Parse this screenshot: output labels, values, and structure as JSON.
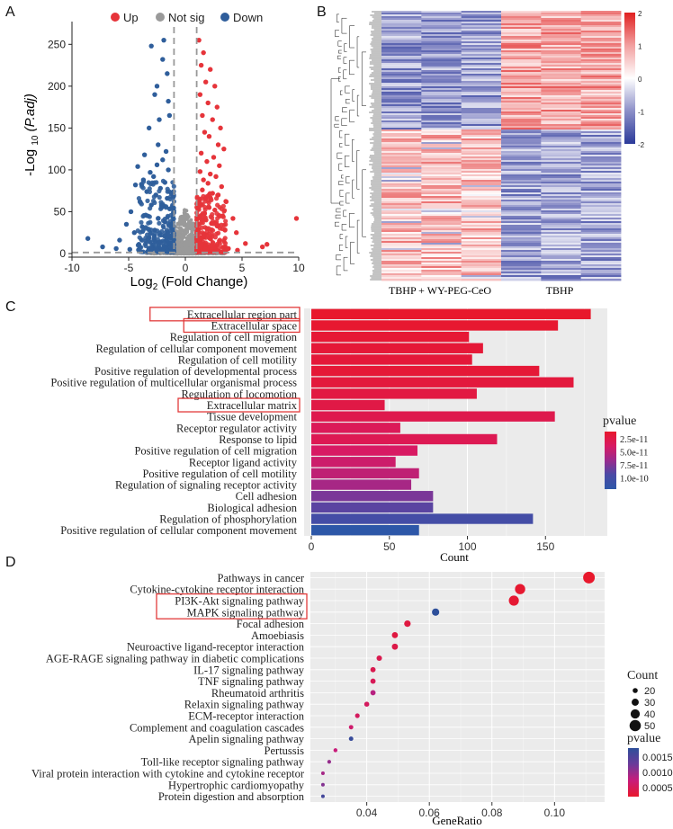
{
  "panels": {
    "a": "A",
    "b": "B",
    "c": "C",
    "d": "D"
  },
  "colors": {
    "up": "#e6343a",
    "notsig": "#9a9a9a",
    "down": "#2f5e9b",
    "heat_low": "#2b3a9a",
    "heat_mid": "#ffffff",
    "heat_high": "#e02020",
    "gridbg": "#ebebeb",
    "box": "#e23b3b"
  },
  "chart_data": [
    {
      "type": "scatter",
      "id": "volcano",
      "legend": [
        "Up",
        "Not sig",
        "Down"
      ],
      "xlabel_main": "Log",
      "xlabel_sub": "2",
      "xlabel_tail": " (Fold Change)",
      "ylabel_main": "-Log ",
      "ylabel_sub": "10",
      "ylabel_tail": " (P.adj)",
      "xlim": [
        -10,
        10
      ],
      "ylim": [
        0,
        260
      ],
      "xticks": [
        -10,
        -5,
        0,
        5,
        10
      ],
      "yticks": [
        0,
        50,
        100,
        150,
        200,
        250
      ],
      "thresholds": {
        "x": [
          -1,
          1
        ],
        "y": 1.3
      },
      "up_points": [
        [
          1.2,
          255
        ],
        [
          1.6,
          240
        ],
        [
          1.4,
          225
        ],
        [
          2.2,
          220
        ],
        [
          1.8,
          205
        ],
        [
          2.6,
          200
        ],
        [
          1.3,
          190
        ],
        [
          2.0,
          180
        ],
        [
          2.8,
          175
        ],
        [
          1.5,
          165
        ],
        [
          2.4,
          160
        ],
        [
          3.1,
          150
        ],
        [
          1.7,
          145
        ],
        [
          2.1,
          140
        ],
        [
          2.9,
          130
        ],
        [
          3.4,
          125
        ],
        [
          1.4,
          120
        ],
        [
          2.5,
          115
        ],
        [
          1.9,
          110
        ],
        [
          3.0,
          105
        ],
        [
          1.3,
          98
        ],
        [
          2.2,
          95
        ],
        [
          2.7,
          92
        ],
        [
          1.6,
          88
        ],
        [
          2.0,
          84
        ],
        [
          3.2,
          80
        ],
        [
          1.5,
          76
        ],
        [
          2.4,
          72
        ],
        [
          2.9,
          70
        ],
        [
          1.8,
          66
        ],
        [
          3.6,
          62
        ],
        [
          1.4,
          58
        ],
        [
          2.1,
          55
        ],
        [
          2.6,
          52
        ],
        [
          1.7,
          48
        ],
        [
          3.3,
          45
        ],
        [
          4.2,
          42
        ],
        [
          1.5,
          40
        ],
        [
          2.3,
          36
        ],
        [
          2.8,
          33
        ],
        [
          1.9,
          30
        ],
        [
          3.5,
          28
        ],
        [
          4.5,
          25
        ],
        [
          1.6,
          22
        ],
        [
          2.2,
          18
        ],
        [
          3.0,
          15
        ],
        [
          5.3,
          12
        ],
        [
          1.4,
          10
        ],
        [
          6.8,
          8
        ],
        [
          7.2,
          11
        ],
        [
          9.8,
          42
        ],
        [
          2.5,
          8
        ],
        [
          3.8,
          6
        ],
        [
          1.8,
          5
        ],
        [
          4.6,
          4
        ],
        [
          2.9,
          3
        ]
      ],
      "down_points": [
        [
          -1.9,
          255
        ],
        [
          -3.0,
          248
        ],
        [
          -2.0,
          232
        ],
        [
          -1.6,
          215
        ],
        [
          -2.5,
          200
        ],
        [
          -2.7,
          190
        ],
        [
          -1.5,
          182
        ],
        [
          -1.4,
          165
        ],
        [
          -2.3,
          160
        ],
        [
          -3.2,
          150
        ],
        [
          -2.4,
          130
        ],
        [
          -1.7,
          122
        ],
        [
          -3.6,
          118
        ],
        [
          -2.0,
          112
        ],
        [
          -2.5,
          106
        ],
        [
          -4.2,
          104
        ],
        [
          -1.5,
          100
        ],
        [
          -3.1,
          97
        ],
        [
          -2.8,
          92
        ],
        [
          -3.7,
          88
        ],
        [
          -1.8,
          85
        ],
        [
          -4.4,
          82
        ],
        [
          -2.2,
          78
        ],
        [
          -3.4,
          74
        ],
        [
          -2.6,
          70
        ],
        [
          -1.6,
          66
        ],
        [
          -4.0,
          62
        ],
        [
          -3.0,
          58
        ],
        [
          -2.1,
          55
        ],
        [
          -4.8,
          50
        ],
        [
          -3.5,
          46
        ],
        [
          -2.4,
          42
        ],
        [
          -1.8,
          38
        ],
        [
          -5.2,
          35
        ],
        [
          -3.8,
          32
        ],
        [
          -2.7,
          28
        ],
        [
          -4.5,
          25
        ],
        [
          -1.5,
          22
        ],
        [
          -3.2,
          19
        ],
        [
          -5.8,
          16
        ],
        [
          -2.2,
          14
        ],
        [
          -4.1,
          11
        ],
        [
          -7.3,
          8
        ],
        [
          -8.6,
          18
        ],
        [
          -1.3,
          8
        ],
        [
          -3.0,
          6
        ],
        [
          -4.9,
          5
        ],
        [
          -2.5,
          4
        ],
        [
          -6.1,
          6
        ]
      ],
      "notsig_points": [
        [
          0.0,
          8
        ],
        [
          0.2,
          12
        ],
        [
          -0.3,
          10
        ],
        [
          0.5,
          6
        ],
        [
          -0.6,
          14
        ],
        [
          0.8,
          9
        ],
        [
          -0.9,
          5
        ],
        [
          0.3,
          18
        ],
        [
          -0.2,
          22
        ],
        [
          0.6,
          26
        ],
        [
          -0.7,
          20
        ],
        [
          0.9,
          16
        ],
        [
          -0.4,
          30
        ],
        [
          0.1,
          4
        ],
        [
          0.4,
          3
        ],
        [
          -0.5,
          2
        ],
        [
          0.7,
          2
        ],
        [
          -0.8,
          3
        ],
        [
          1.0,
          1
        ],
        [
          -1.0,
          1
        ],
        [
          0.2,
          35
        ],
        [
          -0.3,
          28
        ],
        [
          0.5,
          40
        ],
        [
          -0.1,
          44
        ],
        [
          1.8,
          0.8
        ],
        [
          -2.2,
          0.9
        ],
        [
          3.0,
          0.6
        ],
        [
          -3.1,
          0.5
        ],
        [
          2.4,
          1.0
        ],
        [
          -1.6,
          1.1
        ]
      ]
    },
    {
      "type": "heatmap",
      "id": "heatmap",
      "column_groups": [
        "TBHP + WY-PEG-CeO",
        "TBHP"
      ],
      "n_columns": 6,
      "legend_ticks": [
        "2",
        "1",
        "0",
        "-1",
        "-2"
      ],
      "color_range": [
        -2,
        2
      ]
    },
    {
      "type": "bar",
      "id": "go_bar",
      "categories": [
        "Extracellular region part",
        "Extracellular space",
        "Regulation of cell migration",
        "Regulation of cellular component movement",
        "Regulation of cell motility",
        "Positive regulation of developmental process",
        "Positive regulation of multicellular organismal process",
        "Regulation of locomotion",
        "Extracellular matrix",
        "Tissue development",
        "Receptor regulator activity",
        "Response to lipid",
        "Positive regulation of cell migration",
        "Receptor ligand activity",
        "Positive regulation of cell motility",
        "Regulation of signaling receptor activity",
        "Cell adhesion",
        "Biological adhesion",
        "Regulation of phosphorylation",
        "Positive regulation of cellular component movement"
      ],
      "values": [
        179,
        158,
        101,
        110,
        103,
        146,
        168,
        106,
        47,
        156,
        57,
        119,
        68,
        54,
        69,
        64,
        78,
        78,
        142,
        69
      ],
      "pvalues": [
        1e-13,
        2e-12,
        4e-12,
        5e-12,
        6e-12,
        5e-12,
        8e-12,
        1e-11,
        1.2e-11,
        1.5e-11,
        2e-11,
        1.8e-11,
        2.5e-11,
        3e-11,
        3.5e-11,
        4.5e-11,
        6e-11,
        7e-11,
        8e-11,
        1e-10
      ],
      "boxed": [
        "Extracellular region part",
        "Extracellular space",
        "Extracellular matrix"
      ],
      "xlabel": "Count",
      "xlim": [
        0,
        185
      ],
      "xticks": [
        0,
        50,
        100,
        150
      ],
      "legend_title": "pvalue",
      "legend_labels": [
        "2.5e-11",
        "5.0e-11",
        "7.5e-11",
        "1.0e-10"
      ]
    },
    {
      "type": "scatter",
      "id": "kegg_dot",
      "categories": [
        "Pathways in cancer",
        "Cytokine-cytokine receptor interaction",
        "PI3K-Akt signaling pathway",
        "MAPK signaling pathway",
        "Focal adhesion",
        "Amoebiasis",
        "Neuroactive ligand-receptor interaction",
        "AGE-RAGE signaling pathway in diabetic complications",
        "IL-17 signaling pathway",
        "TNF signaling pathway",
        "Rheumatoid arthritis",
        "Relaxin signaling pathway",
        "ECM-receptor interaction",
        "Complement and coagulation cascades",
        "Apelin signaling pathway",
        "Pertussis",
        "Toll-like receptor signaling pathway",
        "Viral protein interaction with cytokine and cytokine receptor",
        "Hypertrophic cardiomyopathy",
        "Protein digestion and absorption"
      ],
      "gene_ratio": [
        0.111,
        0.089,
        0.087,
        0.062,
        0.053,
        0.049,
        0.049,
        0.044,
        0.042,
        0.042,
        0.042,
        0.04,
        0.037,
        0.035,
        0.035,
        0.03,
        0.028,
        0.026,
        0.026,
        0.026
      ],
      "counts": [
        52,
        45,
        44,
        31,
        27,
        25,
        25,
        22,
        21,
        21,
        21,
        20,
        18,
        17,
        17,
        15,
        14,
        13,
        13,
        13
      ],
      "pvalues": [
        5e-05,
        8e-05,
        0.0001,
        0.0017,
        0.0002,
        0.0002,
        0.00025,
        0.0003,
        0.0003,
        0.00035,
        0.0007,
        0.0004,
        0.0004,
        0.0005,
        0.0016,
        0.0006,
        0.0009,
        0.0008,
        0.001,
        0.0015
      ],
      "boxed": [
        "PI3K-Akt signaling pathway",
        "MAPK signaling pathway"
      ],
      "xlabel": "GeneRatio",
      "xlim": [
        0.022,
        0.116
      ],
      "xticks": [
        0.04,
        0.06,
        0.08,
        0.1
      ],
      "xtick_labels": [
        "0.04",
        "0.06",
        "0.08",
        "0.10"
      ],
      "size_legend_title": "Count",
      "size_legend_values": [
        20,
        30,
        40,
        50
      ],
      "color_legend_title": "pvalue",
      "color_legend_labels": [
        "0.0015",
        "0.0010",
        "0.0005"
      ]
    }
  ]
}
